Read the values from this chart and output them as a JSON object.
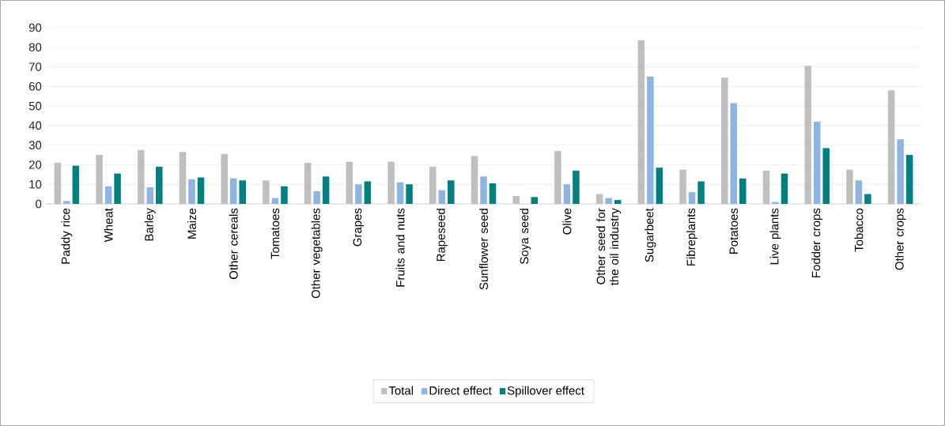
{
  "chart_data": {
    "type": "bar",
    "categories": [
      "Paddy rice",
      "Wheat",
      "Barley",
      "Maize",
      "Other cereals",
      "Tomatoes",
      "Other vegetables",
      "Grapes",
      "Fruits and nuts",
      "Rapeseed",
      "Sunflower seed",
      "Soya seed",
      "Olive",
      "Other seed for the oil industry",
      "Sugarbeet",
      "Fibreplants",
      "Potatoes",
      "Live plants",
      "Fodder crops",
      "Tobacco",
      "Other crops"
    ],
    "series": [
      {
        "name": "Total",
        "color": "#bfbfbf",
        "values": [
          21,
          25,
          27.5,
          26.5,
          25.5,
          12,
          21,
          21.5,
          21.5,
          19,
          24.5,
          4,
          27,
          5,
          83.5,
          17.5,
          64.5,
          17,
          70.5,
          17.5,
          58
        ]
      },
      {
        "name": "Direct effect",
        "color": "#8eb4e3",
        "values": [
          1.5,
          9,
          8.5,
          12.5,
          13,
          3,
          6.5,
          10,
          11,
          7,
          14,
          null,
          10,
          3,
          65,
          6,
          51.5,
          1,
          42,
          12,
          33
        ]
      },
      {
        "name": "Spillover effect",
        "color": "#008080",
        "values": [
          19.5,
          15.5,
          19,
          13.5,
          12,
          9,
          14,
          11.5,
          10,
          12,
          10.5,
          3.5,
          17,
          2,
          18.5,
          11.5,
          13,
          15.5,
          28.5,
          5,
          25
        ]
      }
    ],
    "ylim": [
      0,
      90
    ],
    "yticks": [
      0,
      10,
      20,
      30,
      40,
      50,
      60,
      70,
      80,
      90
    ],
    "grid": "y",
    "legend": "bottom"
  }
}
